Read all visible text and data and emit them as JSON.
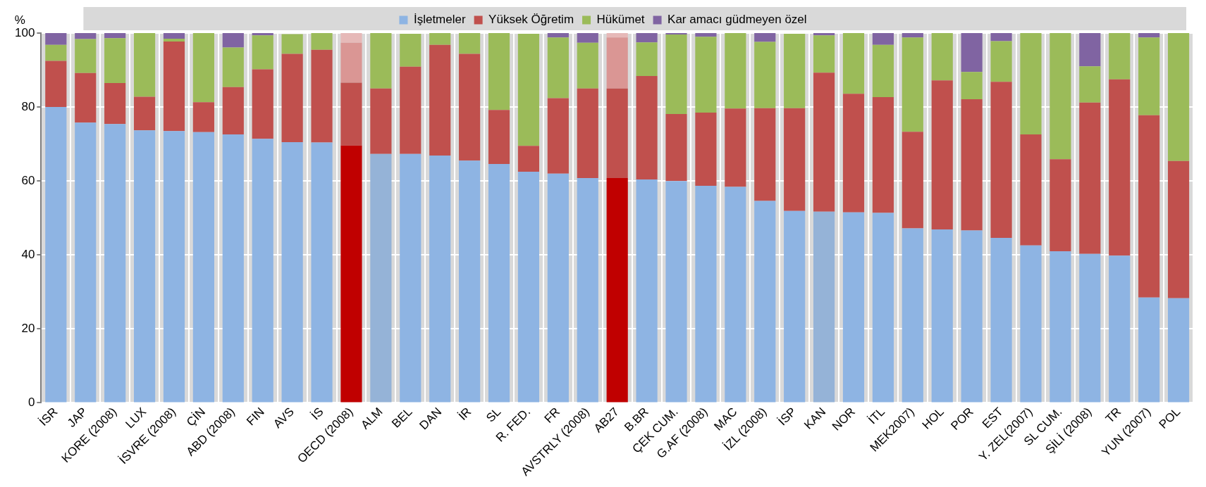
{
  "chart_data": {
    "type": "bar",
    "stacked": true,
    "ylabel": "%",
    "legend": "top",
    "grid": true,
    "categories": [
      "İSR",
      "JAP",
      "KORE (2008)",
      "LUX",
      "İSVRE (2008)",
      "ÇİN",
      "ABD (2008)",
      "FIN",
      "AVS",
      "İS",
      "OECD (2008)",
      "ALM",
      "BEL",
      "DAN",
      "İR",
      "SL",
      "R. FED.",
      "FR",
      "AVSTRLY (2008)",
      "AB27",
      "B.BR",
      "ÇEK CUM.",
      "G.AF (2008)",
      "MAC",
      "İZL (2008)",
      "İSP",
      "KAN",
      "NOR",
      "İTL",
      "MEK2007)",
      "HOL",
      "POR",
      "EST",
      "Y. ZEL(2007)",
      "SL CUM.",
      "ŞİLİ (2008)",
      "TR",
      "YUN (2007)",
      "POL"
    ],
    "ylim": [
      0,
      100
    ],
    "yticks": [
      0,
      20,
      40,
      60,
      80,
      100
    ],
    "series": [
      {
        "name": "İşletmeler",
        "color": "#8eb4e3",
        "colors": [
          "#8eb4e3",
          "#8eb4e3",
          "#8eb4e3",
          "#8eb4e3",
          "#8eb4e3",
          "#8eb4e3",
          "#8eb4e3",
          "#8eb4e3",
          "#8eb4e3",
          "#8eb4e3",
          "#c00000",
          "#95b3d7",
          "#8eb4e3",
          "#8eb4e3",
          "#8eb4e3",
          "#8eb4e3",
          "#8eb4e3",
          "#8eb4e3",
          "#8eb4e3",
          "#c00000",
          "#8eb4e3",
          "#8eb4e3",
          "#8eb4e3",
          "#8eb4e3",
          "#8eb4e3",
          "#8eb4e3",
          "#95b3d7",
          "#8eb4e3",
          "#8eb4e3",
          "#8eb4e3",
          "#8eb4e3",
          "#8eb4e3",
          "#8eb4e3",
          "#8eb4e3",
          "#8eb4e3",
          "#8eb4e3",
          "#8eb4e3",
          "#8eb4e3",
          "#8eb4e3"
        ],
        "values": [
          80,
          75.8,
          75.4,
          73.7,
          73.5,
          73.2,
          72.6,
          71.4,
          70.5,
          70.4,
          69.6,
          67.3,
          67.3,
          66.9,
          65.5,
          64.6,
          62.5,
          62.0,
          60.8,
          60.8,
          60.4,
          60.0,
          58.7,
          58.4,
          54.6,
          51.9,
          51.7,
          51.5,
          51.4,
          47.2,
          46.9,
          46.6,
          44.6,
          42.6,
          41.0,
          40.3,
          39.8,
          28.5,
          28.3
        ]
      },
      {
        "name": "Yüksek Öğretim",
        "color": "#c0504d",
        "values": [
          12.5,
          13.4,
          11.1,
          9.1,
          24.2,
          8.1,
          12.8,
          18.8,
          23.9,
          25.1,
          17.0,
          17.7,
          23.6,
          29.9,
          28.9,
          14.6,
          7.0,
          20.4,
          24.2,
          24.2,
          28.0,
          18.1,
          19.8,
          21.2,
          25.1,
          27.8,
          37.6,
          32.1,
          31.3,
          26.1,
          40.3,
          35.5,
          42.2,
          30.0,
          24.9,
          40.9,
          47.7,
          49.3,
          37.1
        ]
      },
      {
        "name": "Hükümet",
        "color": "#9bbb59",
        "colors": [
          "#9bbb59",
          "#9bbb59",
          "#9bbb59",
          "#9bbb59",
          "#9bbb59",
          "#9bbb59",
          "#9bbb59",
          "#9bbb59",
          "#9bbb59",
          "#9bbb59",
          "#da9694",
          "#9bbb59",
          "#9bbb59",
          "#9bbb59",
          "#9bbb59",
          "#9bbb59",
          "#9bbb59",
          "#9bbb59",
          "#9bbb59",
          "#da9694",
          "#9bbb59",
          "#9bbb59",
          "#9bbb59",
          "#9bbb59",
          "#9bbb59",
          "#9bbb59",
          "#9bbb59",
          "#9bbb59",
          "#9bbb59",
          "#9bbb59",
          "#9bbb59",
          "#9bbb59",
          "#9bbb59",
          "#9bbb59",
          "#9bbb59",
          "#9bbb59",
          "#9bbb59",
          "#9bbb59",
          "#9bbb59"
        ],
        "values": [
          4.3,
          9.2,
          12.1,
          17.2,
          0.8,
          18.7,
          10.7,
          9.2,
          5.3,
          4.5,
          10.8,
          15.0,
          8.9,
          3.2,
          5.6,
          20.8,
          30.3,
          16.4,
          12.4,
          13.8,
          9.1,
          21.5,
          20.5,
          20.4,
          17.9,
          20.1,
          10.1,
          16.4,
          14.1,
          25.5,
          12.8,
          7.4,
          11.0,
          27.4,
          34.1,
          9.8,
          12.5,
          21.0,
          34.6
        ]
      },
      {
        "name": "Kar amacı güdmeyen özel",
        "color": "#8064a2",
        "colors": [
          "#8064a2",
          "#8064a2",
          "#8064a2",
          "#8064a2",
          "#8064a2",
          "#8064a2",
          "#8064a2",
          "#8064a2",
          "#8064a2",
          "#8064a2",
          "#e6b9b8",
          "#8064a2",
          "#8064a2",
          "#8064a2",
          "#8064a2",
          "#8064a2",
          "#8064a2",
          "#8064a2",
          "#8064a2",
          "#e6b9b8",
          "#8064a2",
          "#8064a2",
          "#8064a2",
          "#8064a2",
          "#8064a2",
          "#8064a2",
          "#8064a2",
          "#8064a2",
          "#8064a2",
          "#8064a2",
          "#8064a2",
          "#8064a2",
          "#8064a2",
          "#8064a2",
          "#8064a2",
          "#8064a2",
          "#8064a2",
          "#8064a2",
          "#8064a2"
        ],
        "values": [
          3.2,
          1.6,
          1.4,
          0,
          1.5,
          0,
          3.9,
          0.6,
          null,
          0,
          2.6,
          0,
          null,
          0,
          0,
          0,
          null,
          1.2,
          2.6,
          1.2,
          2.5,
          0.4,
          1.0,
          0,
          2.4,
          null,
          0.6,
          0,
          3.2,
          1.2,
          0,
          10.5,
          2.2,
          0,
          0,
          9.0,
          0,
          1.2,
          0
        ]
      }
    ]
  }
}
